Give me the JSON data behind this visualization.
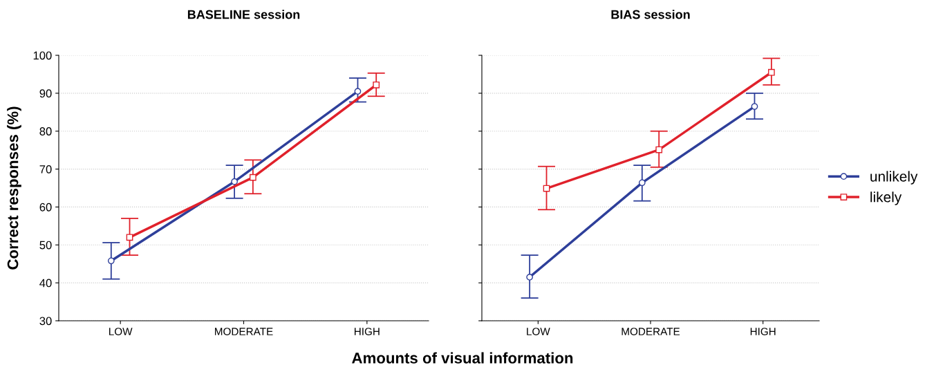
{
  "chart_data": [
    {
      "type": "line",
      "title": "BASELINE session",
      "ylabel": "Correct responses (%)",
      "xlabel": "Amounts of visual information",
      "categories": [
        "LOW",
        "MODERATE",
        "HIGH"
      ],
      "ylim": [
        30,
        100
      ],
      "yticks": [
        30,
        40,
        50,
        60,
        70,
        80,
        90,
        100
      ],
      "grid": "y",
      "legend": false,
      "series": [
        {
          "color": "#2e3f9a",
          "marker": "circle",
          "values": [
            45.8,
            66.7,
            90.5
          ],
          "errors": [
            [
              41.0,
              50.6
            ],
            [
              62.3,
              71.0
            ],
            [
              87.7,
              94.0
            ]
          ]
        },
        {
          "color": "#e0212b",
          "marker": "square",
          "values": [
            52.0,
            67.8,
            92.2
          ],
          "errors": [
            [
              47.3,
              57.0
            ],
            [
              63.5,
              72.4
            ],
            [
              89.2,
              95.3
            ]
          ]
        }
      ]
    },
    {
      "type": "line",
      "title": "BIAS session",
      "categories": [
        "LOW",
        "MODERATE",
        "HIGH"
      ],
      "ylim": [
        30,
        100
      ],
      "yticks": [
        30,
        40,
        50,
        60,
        70,
        80,
        90,
        100
      ],
      "tick_labels": "x",
      "grid": "y",
      "legend": "right",
      "series": [
        {
          "name": "unlikely",
          "color": "#2e3f9a",
          "marker": "circle",
          "values": [
            41.5,
            66.4,
            86.5
          ],
          "errors": [
            [
              36.0,
              47.3
            ],
            [
              61.6,
              71.0
            ],
            [
              83.2,
              90.0
            ]
          ]
        },
        {
          "name": "likely",
          "color": "#e0212b",
          "marker": "square",
          "values": [
            64.9,
            75.1,
            95.5
          ],
          "errors": [
            [
              59.3,
              70.7
            ],
            [
              70.5,
              80.0
            ],
            [
              92.2,
              99.2
            ]
          ]
        }
      ]
    }
  ]
}
